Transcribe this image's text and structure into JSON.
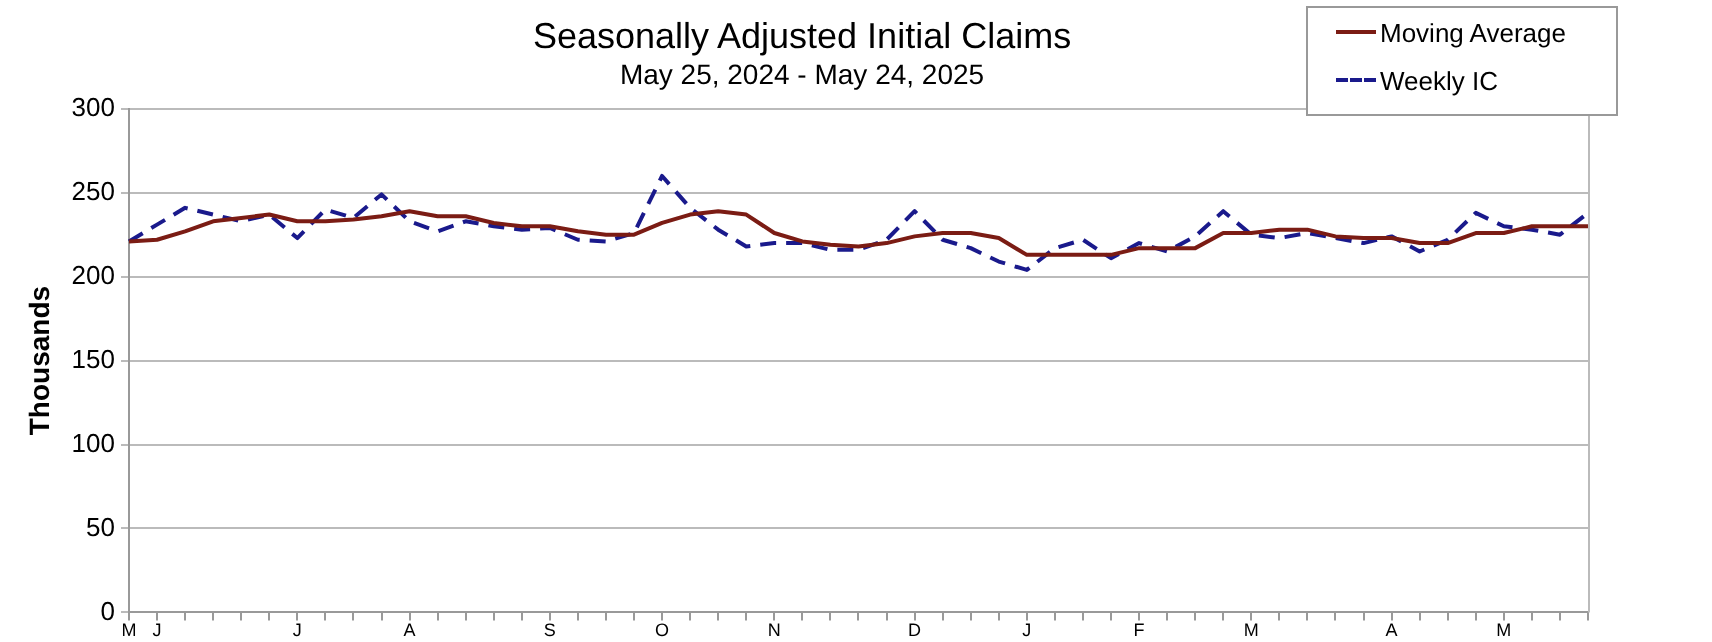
{
  "chart_data": {
    "type": "line",
    "title": "Seasonally Adjusted Initial Claims",
    "subtitle": "May 25, 2024 - May 24, 2025",
    "ylabel": "Thousands",
    "categories": [
      "M",
      "J",
      null,
      null,
      null,
      null,
      "J",
      null,
      null,
      null,
      "A",
      null,
      null,
      null,
      null,
      "S",
      null,
      null,
      null,
      "O",
      null,
      null,
      null,
      "N",
      null,
      null,
      null,
      null,
      "D",
      null,
      null,
      null,
      "J",
      null,
      null,
      null,
      "F",
      null,
      null,
      null,
      "M",
      null,
      null,
      null,
      null,
      "A",
      null,
      null,
      null,
      "M",
      null,
      null,
      null
    ],
    "series": [
      {
        "name": "Moving Average",
        "color": "#7b1c14",
        "line_style": "solid",
        "values": [
          221,
          222,
          227,
          233,
          235,
          237,
          233,
          233,
          234,
          236,
          239,
          236,
          236,
          232,
          230,
          230,
          227,
          225,
          225,
          232,
          237,
          239,
          237,
          226,
          221,
          219,
          218,
          220,
          224,
          226,
          226,
          223,
          213,
          213,
          213,
          213,
          217,
          217,
          217,
          226,
          226,
          228,
          228,
          224,
          223,
          223,
          220,
          220,
          226,
          226,
          230,
          230,
          230
        ]
      },
      {
        "name": "Weekly IC",
        "color": "#1a1a8c",
        "line_style": "dashed",
        "values": [
          221,
          231,
          241,
          237,
          233,
          237,
          223,
          240,
          235,
          249,
          233,
          227,
          233,
          230,
          228,
          229,
          222,
          221,
          226,
          260,
          241,
          228,
          218,
          220,
          220,
          216,
          216,
          222,
          239,
          222,
          217,
          209,
          204,
          217,
          222,
          211,
          220,
          215,
          224,
          239,
          225,
          223,
          226,
          223,
          220,
          224,
          215,
          222,
          238,
          230,
          228,
          225,
          238
        ]
      }
    ],
    "ylim": [
      0,
      300
    ],
    "yticks": [
      0,
      50,
      100,
      150,
      200,
      250,
      300
    ],
    "grid": "y",
    "legend": "top right",
    "marker": "none"
  }
}
